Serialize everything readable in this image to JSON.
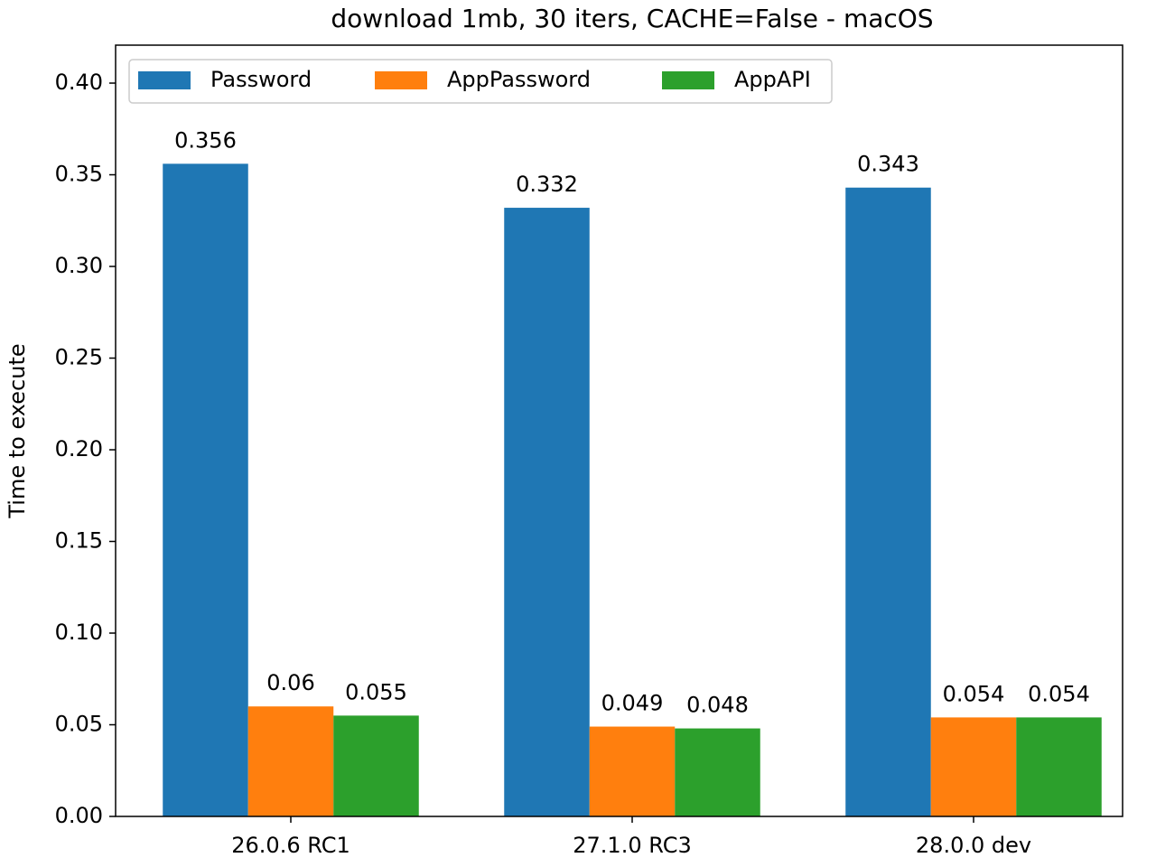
{
  "chart_data": {
    "type": "bar",
    "title": "download 1mb, 30 iters, CACHE=False - macOS",
    "y_label": "Time to execute",
    "categories": [
      "26.0.6 RC1",
      "27.1.0 RC3",
      "28.0.0 dev"
    ],
    "series": [
      {
        "name": "Password",
        "color": "#1f77b4",
        "values": [
          0.356,
          0.332,
          0.343
        ]
      },
      {
        "name": "AppPassword",
        "color": "#ff7f0e",
        "values": [
          0.06,
          0.049,
          0.054
        ]
      },
      {
        "name": "AppAPI",
        "color": "#2ca02c",
        "values": [
          0.055,
          0.048,
          0.054
        ]
      }
    ],
    "ylim": [
      0,
      0.4207
    ],
    "yticks": [
      {
        "value": 0,
        "label": "0.00"
      },
      0.05,
      {
        "value": 0.1,
        "label": "0.10"
      },
      0.15,
      {
        "value": 0.2,
        "label": "0.20"
      },
      0.25,
      {
        "value": 0.3,
        "label": "0.30"
      },
      0.35,
      {
        "value": 0.4,
        "label": "0.40"
      }
    ],
    "legend": "upper left",
    "data_labels": true
  }
}
